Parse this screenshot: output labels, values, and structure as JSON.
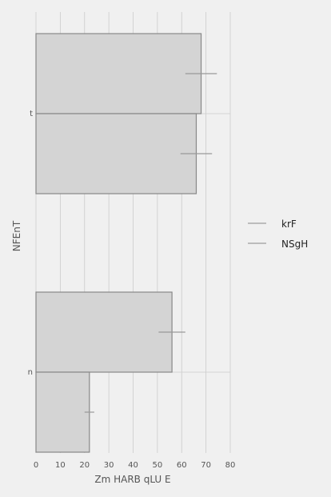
{
  "chart_data": {
    "type": "bar",
    "orientation": "horizontal",
    "xlabel": "Zm HARB qLU E",
    "ylabel": "NFEnT",
    "xlim": [
      0,
      80
    ],
    "x_ticks": [
      0,
      10,
      20,
      30,
      40,
      50,
      60,
      70,
      80
    ],
    "x_tick_labels": [
      "0",
      "10",
      "20",
      "30",
      "40",
      "50",
      "60",
      "70",
      "80"
    ],
    "categories": [
      "t",
      "n"
    ],
    "series": [
      {
        "name": "krF",
        "values": [
          68,
          56
        ],
        "errors": [
          6.5,
          5.5
        ]
      },
      {
        "name": "NSgH",
        "values": [
          66,
          22
        ],
        "errors": [
          6.5,
          2.0
        ]
      }
    ],
    "grid": true,
    "legend_position": "right",
    "colors": {
      "background": "#f0f0f0",
      "bar_fill": "#d4d4d4",
      "bar_stroke": "#888888",
      "error_bar": "#999999",
      "grid": "#cccccc",
      "legend_line": "#aaaaaa",
      "text": "#555555"
    }
  }
}
